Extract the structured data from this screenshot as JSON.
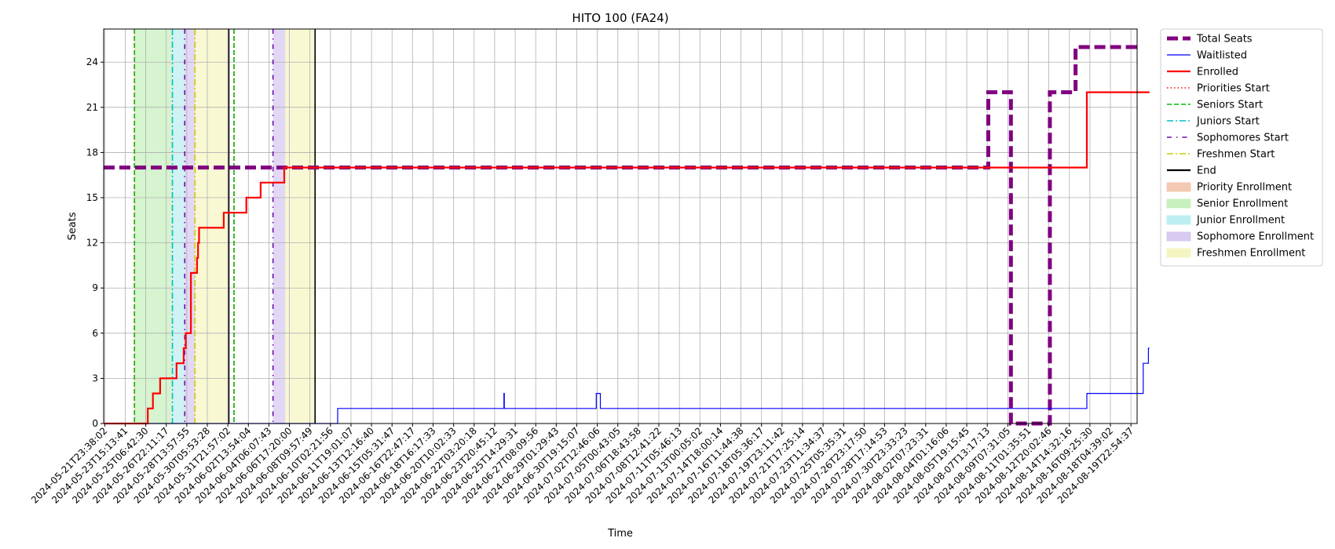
{
  "chart_data": {
    "type": "line",
    "title": "HITO 100 (FA24)",
    "xlabel": "Time",
    "ylabel": "Seats",
    "ylim": [
      0,
      26.2
    ],
    "yticks": [
      0,
      3,
      6,
      9,
      12,
      15,
      18,
      21,
      24
    ],
    "grid": true,
    "legend_position": "outside-right",
    "x_tick_labels": [
      "2024-05-21T23:38:02",
      "2024-05-23T15:13:41",
      "2024-05-25T06:42:30",
      "2024-05-26T22:11:17",
      "2024-05-28T13:57:55",
      "2024-05-30T05:53:28",
      "2024-05-31T21:57:02",
      "2024-06-02T13:54:04",
      "2024-06-04T06:07:43",
      "2024-06-06T17:20:00",
      "2024-06-08T09:57:49",
      "2024-06-10T02:21:56",
      "2024-06-11T19:01:07",
      "2024-06-13T12:16:40",
      "2024-06-15T05:31:47",
      "2024-06-16T22:47:17",
      "2024-06-18T16:17:33",
      "2024-06-20T10:02:33",
      "2024-06-22T03:20:18",
      "2024-06-23T20:45:12",
      "2024-06-25T14:29:31",
      "2024-06-27T08:09:56",
      "2024-06-29T01:29:43",
      "2024-06-30T19:15:07",
      "2024-07-02T12:46:06",
      "2024-07-05T00:43:05",
      "2024-07-06T18:43:58",
      "2024-07-08T12:41:22",
      "2024-07-11T05:46:13",
      "2024-07-13T00:05:02",
      "2024-07-14T18:00:14",
      "2024-07-16T11:44:38",
      "2024-07-18T05:36:17",
      "2024-07-19T23:11:42",
      "2024-07-21T17:25:14",
      "2024-07-23T11:34:37",
      "2024-07-25T05:35:31",
      "2024-07-26T23:17:50",
      "2024-07-28T17:14:53",
      "2024-07-30T23:33:23",
      "2024-08-02T07:23:31",
      "2024-08-04T01:16:06",
      "2024-08-05T19:15:45",
      "2024-08-07T13:17:13",
      "2024-08-09T07:31:05",
      "2024-08-11T01:35:51",
      "2024-08-12T20:02:46",
      "2024-08-14T14:32:16",
      "2024-08-16T09:25:30",
      "2024-08-18T04:39:02",
      "2024-08-19T22:54:37"
    ],
    "x_index_max": 50.3,
    "series": [
      {
        "name": "Total Seats",
        "color": "#800080",
        "style": "dashed-thick",
        "points": [
          [
            -0.05,
            17
          ],
          [
            43.05,
            17
          ],
          [
            43.05,
            22
          ],
          [
            44.15,
            22
          ],
          [
            44.15,
            0
          ],
          [
            46.05,
            0
          ],
          [
            46.05,
            22
          ],
          [
            47.3,
            22
          ],
          [
            47.3,
            25
          ],
          [
            50.3,
            25
          ]
        ]
      },
      {
        "name": "Waitlisted",
        "color": "#0000ff",
        "style": "solid-thin",
        "points": [
          [
            0,
            0
          ],
          [
            11.35,
            0
          ],
          [
            11.35,
            1
          ],
          [
            19.45,
            1
          ],
          [
            19.45,
            2
          ],
          [
            19.47,
            2
          ],
          [
            19.47,
            1
          ],
          [
            23.95,
            1
          ],
          [
            23.95,
            2
          ],
          [
            24.15,
            2
          ],
          [
            24.15,
            1
          ],
          [
            47.85,
            1
          ],
          [
            47.85,
            2
          ],
          [
            50.6,
            2
          ],
          [
            50.6,
            4
          ],
          [
            50.85,
            4
          ],
          [
            50.85,
            5
          ],
          [
            50.9,
            5
          ]
        ]
      },
      {
        "name": "Enrolled",
        "color": "#ff0000",
        "style": "solid",
        "points": [
          [
            0,
            0
          ],
          [
            2.1,
            0
          ],
          [
            2.1,
            1
          ],
          [
            2.35,
            1
          ],
          [
            2.35,
            2
          ],
          [
            2.7,
            2
          ],
          [
            2.7,
            3
          ],
          [
            3.5,
            3
          ],
          [
            3.5,
            4
          ],
          [
            3.85,
            4
          ],
          [
            3.85,
            5
          ],
          [
            3.95,
            5
          ],
          [
            3.95,
            6
          ],
          [
            4.2,
            6
          ],
          [
            4.2,
            10
          ],
          [
            4.5,
            10
          ],
          [
            4.5,
            11
          ],
          [
            4.55,
            11
          ],
          [
            4.55,
            12
          ],
          [
            4.6,
            12
          ],
          [
            4.6,
            13
          ],
          [
            5.8,
            13
          ],
          [
            5.8,
            14
          ],
          [
            6.9,
            14
          ],
          [
            6.9,
            15
          ],
          [
            7.6,
            15
          ],
          [
            7.6,
            16
          ],
          [
            8.75,
            16
          ],
          [
            8.75,
            17
          ],
          [
            47.85,
            17
          ],
          [
            47.85,
            22
          ],
          [
            50.9,
            22
          ]
        ]
      }
    ],
    "enrollment_periods": [
      {
        "name": "Priority Enrollment",
        "color": "#f4c9b3",
        "range": [
          1.45,
          1.5
        ]
      },
      {
        "name": "Senior Enrollment",
        "color": "#c8f0bf",
        "range": [
          1.5,
          3.3
        ]
      },
      {
        "name": "Junior Enrollment",
        "color": "#bfeef2",
        "range": [
          3.3,
          3.9
        ]
      },
      {
        "name": "Sophomore Enrollment",
        "color": "#d8c9f0",
        "range": [
          3.9,
          4.4
        ]
      },
      {
        "name": "Freshmen Enrollment",
        "color": "#f5f5c4",
        "range": [
          4.4,
          6.0
        ]
      },
      {
        "name": "Sophomore Enrollment",
        "color": "#d8c9f0",
        "range": [
          8.2,
          8.8
        ]
      },
      {
        "name": "Freshmen Enrollment",
        "color": "#f5f5c4",
        "range": [
          8.8,
          10.25
        ]
      }
    ],
    "start_markers": [
      {
        "name": "Priorities Start",
        "color": "#ff0000",
        "style": "dotted",
        "x": [
          1.45,
          6.3
        ]
      },
      {
        "name": "Seniors Start",
        "color": "#00bb00",
        "style": "dashed",
        "x": [
          1.45,
          6.3
        ]
      },
      {
        "name": "Juniors Start",
        "color": "#00bfbf",
        "style": "dashdot",
        "x": [
          3.3
        ]
      },
      {
        "name": "Sophomores Start",
        "color": "#6a0dad",
        "style": "dashdotted-sparse",
        "x": [
          3.9,
          8.2
        ]
      },
      {
        "name": "Freshmen Start",
        "color": "#cccc00",
        "style": "dashdot",
        "x": [
          4.4
        ]
      },
      {
        "name": "End",
        "color": "#000000",
        "style": "solid",
        "x": [
          6.05,
          10.25
        ]
      }
    ],
    "legend": [
      {
        "label": "Total Seats",
        "kind": "line",
        "color": "#800080",
        "style": "dashed-thick"
      },
      {
        "label": "Waitlisted",
        "kind": "line",
        "color": "#0000ff",
        "style": "solid-thin"
      },
      {
        "label": "Enrolled",
        "kind": "line",
        "color": "#ff0000",
        "style": "solid"
      },
      {
        "label": "Priorities Start",
        "kind": "line",
        "color": "#ff0000",
        "style": "dotted"
      },
      {
        "label": "Seniors Start",
        "kind": "line",
        "color": "#00bb00",
        "style": "dashed"
      },
      {
        "label": "Juniors Start",
        "kind": "line",
        "color": "#00bfbf",
        "style": "dashdot"
      },
      {
        "label": "Sophomores Start",
        "kind": "line",
        "color": "#6a0dad",
        "style": "dashdotted-sparse"
      },
      {
        "label": "Freshmen Start",
        "kind": "line",
        "color": "#cccc00",
        "style": "dashdot"
      },
      {
        "label": "End",
        "kind": "line",
        "color": "#000000",
        "style": "solid"
      },
      {
        "label": "Priority Enrollment",
        "kind": "patch",
        "color": "#f4c9b3"
      },
      {
        "label": "Senior Enrollment",
        "kind": "patch",
        "color": "#c8f0bf"
      },
      {
        "label": "Junior Enrollment",
        "kind": "patch",
        "color": "#bfeef2"
      },
      {
        "label": "Sophomore Enrollment",
        "kind": "patch",
        "color": "#d8c9f0"
      },
      {
        "label": "Freshmen Enrollment",
        "kind": "patch",
        "color": "#f5f5c4"
      }
    ]
  }
}
